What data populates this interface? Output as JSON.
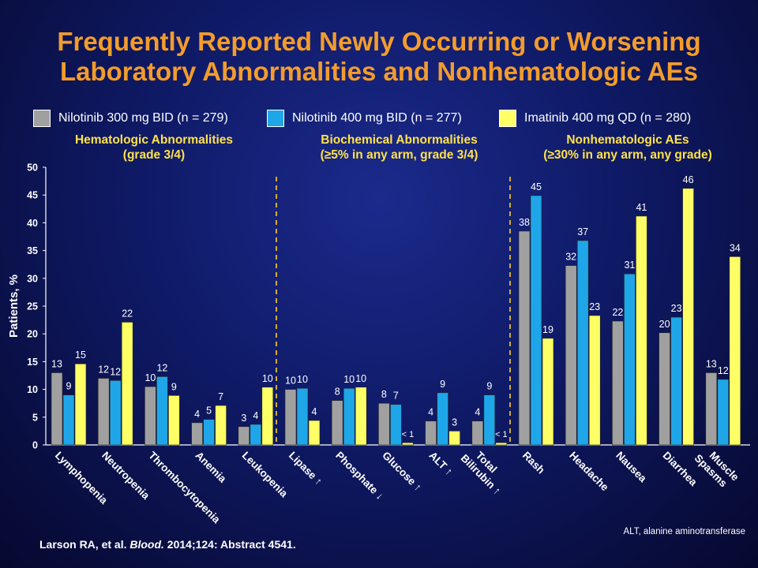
{
  "title": "Frequently Reported Newly Occurring or Worsening Laboratory Abnormalities and Nonhematologic AEs",
  "legend": [
    {
      "label": "Nilotinib 300 mg BID (n = 279)",
      "color": "#a0a0a0"
    },
    {
      "label": "Nilotinib 400 mg BID (n = 277)",
      "color": "#1fa6e8"
    },
    {
      "label": "Imatinib 400 mg QD (n = 280)",
      "color": "#ffff66"
    }
  ],
  "sections": [
    {
      "line1": "Hematologic Abnormalities",
      "line2": "(grade 3/4)"
    },
    {
      "line1": "Biochemical Abnormalities",
      "line2": "(≥5% in any arm, grade 3/4)"
    },
    {
      "line1": "Nonhematologic AEs",
      "line2": "(≥30% in any arm, any grade)"
    }
  ],
  "citation": {
    "authors": "Larson RA, et al.",
    "journal": "Blood.",
    "rest": "2014;124: Abstract 4541."
  },
  "footnote": "ALT, alanine aminotransferase",
  "chart_data": {
    "type": "bar",
    "ylabel": "Patients, %",
    "ylim": [
      0,
      50
    ],
    "yticks": [
      0,
      5,
      10,
      15,
      20,
      25,
      30,
      35,
      40,
      45,
      50
    ],
    "categories": [
      [
        "Lymphopenia"
      ],
      [
        "Neutropenia"
      ],
      [
        "Thrombocytopenia"
      ],
      [
        "Anemia"
      ],
      [
        "Leukopenia"
      ],
      [
        "Lipase ↑"
      ],
      [
        "Phosphate ↓"
      ],
      [
        "Glucose ↑"
      ],
      [
        "ALT ↑"
      ],
      [
        "Total",
        "Bilirubin ↑"
      ],
      [
        "Rash"
      ],
      [
        "Headache"
      ],
      [
        "Nausea"
      ],
      [
        "Diarrhea"
      ],
      [
        "Muscle",
        "Spasms"
      ]
    ],
    "series": [
      {
        "name": "Nilotinib 300 mg BID (n = 279)",
        "values": [
          13,
          12,
          10.5,
          4,
          3.3,
          10,
          8,
          7.5,
          4.3,
          4.3,
          38.5,
          32.3,
          22.3,
          20.2,
          13
        ],
        "labels": [
          "13",
          "12",
          "10",
          "4",
          "3",
          "10",
          "8",
          "8",
          "4",
          "4",
          "38",
          "32",
          "22",
          "20",
          "13"
        ]
      },
      {
        "name": "Nilotinib 400 mg BID (n = 277)",
        "values": [
          9,
          11.6,
          12.3,
          4.6,
          3.7,
          10.2,
          10.2,
          7.3,
          9.4,
          9,
          44.9,
          36.8,
          30.8,
          23,
          11.8
        ],
        "labels": [
          "9",
          "12",
          "12",
          "5",
          "4",
          "10",
          "10",
          "7",
          "9",
          "9",
          "45",
          "37",
          "31",
          "23",
          "12"
        ]
      },
      {
        "name": "Imatinib 400 mg QD (n = 280)",
        "values": [
          14.6,
          22.1,
          8.9,
          7.1,
          10.4,
          4.4,
          10.4,
          0.4,
          2.5,
          0.4,
          19.2,
          23.3,
          41.2,
          46.2,
          33.9
        ],
        "labels": [
          "15",
          "22",
          "9",
          "7",
          "10",
          "4",
          "10",
          "< 1",
          "3",
          "< 1",
          "19",
          "23",
          "41",
          "46",
          "34"
        ]
      }
    ],
    "dividers_after_category": [
      4,
      9
    ],
    "grid": false
  }
}
